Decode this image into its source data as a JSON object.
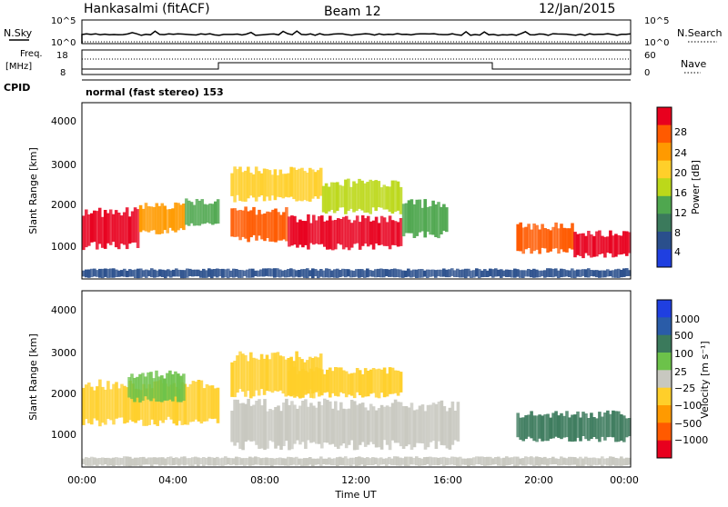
{
  "header": {
    "station": "Hankasalmi (fitACF)",
    "beam": "Beam 12",
    "date": "12/Jan/2015"
  },
  "noise_panel": {
    "left_label": "N.Sky",
    "left_ticks": [
      "10^5",
      "10^0"
    ],
    "right_ticks": [
      "10^5",
      "10^0"
    ],
    "right_label": "N.Search"
  },
  "freq_panel": {
    "label_line1": "Freq.",
    "label_line2": "[MHz]",
    "left_ticks": [
      "18",
      "8"
    ],
    "right_ticks": [
      "60",
      "0"
    ],
    "right_label": "Nave"
  },
  "cpid": {
    "label": "CPID",
    "value": "normal (fast stereo) 153"
  },
  "power_panel": {
    "ylabel": "Slant Range [km]",
    "yticks": [
      "4000",
      "3000",
      "2000",
      "1000"
    ],
    "colorbar_label": "Power [dB]",
    "colorbar_ticks": [
      "28",
      "24",
      "20",
      "16",
      "12",
      "8",
      "4"
    ],
    "colors": [
      "#e8001e",
      "#ff5a00",
      "#ff9a00",
      "#ffcf2a",
      "#bcd81a",
      "#4fa74f",
      "#3b7a5c",
      "#2a4f8c",
      "#1f3fe0"
    ]
  },
  "velocity_panel": {
    "ylabel": "Slant Range [km]",
    "yticks": [
      "4000",
      "3000",
      "2000",
      "1000"
    ],
    "colorbar_label": "Velocity [m s⁻¹]",
    "colorbar_ticks": [
      "1000",
      "500",
      "100",
      "25",
      "−25",
      "−100",
      "−500",
      "−1000"
    ],
    "colors": [
      "#1f3fe0",
      "#2a5ca8",
      "#3b7a5c",
      "#6cc24a",
      "#c8c8c0",
      "#ffcf2a",
      "#ff9a00",
      "#ff5a00",
      "#e8001e"
    ]
  },
  "x_axis": {
    "label": "Time UT",
    "ticks": [
      "00:00",
      "04:00",
      "08:00",
      "12:00",
      "16:00",
      "20:00",
      "00:00"
    ]
  },
  "chart_data": [
    {
      "type": "heatmap",
      "title": "Power [dB]",
      "xlabel": "Time UT",
      "ylabel": "Slant Range [km]",
      "xlim": [
        "00:00",
        "24:00"
      ],
      "ylim": [
        180,
        4600
      ],
      "colorbar_range": [
        3,
        30
      ],
      "regions": [
        {
          "t_start": 0.0,
          "t_end": 2.5,
          "range_min": 900,
          "range_max": 2000,
          "level": 27
        },
        {
          "t_start": 2.5,
          "t_end": 4.5,
          "range_min": 1300,
          "range_max": 2100,
          "level": 22
        },
        {
          "t_start": 4.5,
          "t_end": 6.0,
          "range_min": 1500,
          "range_max": 2200,
          "level": 12
        },
        {
          "t_start": 6.5,
          "t_end": 9.0,
          "range_min": 1100,
          "range_max": 2000,
          "level": 26
        },
        {
          "t_start": 6.5,
          "t_end": 10.5,
          "range_min": 2100,
          "range_max": 3000,
          "level": 18
        },
        {
          "t_start": 9.0,
          "t_end": 14.0,
          "range_min": 900,
          "range_max": 1800,
          "level": 27
        },
        {
          "t_start": 10.5,
          "t_end": 14.0,
          "range_min": 1800,
          "range_max": 2700,
          "level": 17
        },
        {
          "t_start": 14.0,
          "t_end": 16.0,
          "range_min": 1200,
          "range_max": 2200,
          "level": 12
        },
        {
          "t_start": 19.0,
          "t_end": 21.5,
          "range_min": 800,
          "range_max": 1600,
          "level": 24
        },
        {
          "t_start": 21.5,
          "t_end": 24.0,
          "range_min": 700,
          "range_max": 1400,
          "level": 29
        },
        {
          "t_start": 0.0,
          "t_end": 24.0,
          "range_min": 200,
          "range_max": 450,
          "level": 8
        }
      ]
    },
    {
      "type": "heatmap",
      "title": "Velocity [m s⁻¹]",
      "xlabel": "Time UT",
      "ylabel": "Slant Range [km]",
      "xlim": [
        "00:00",
        "24:00"
      ],
      "ylim": [
        180,
        4600
      ],
      "colorbar_range": [
        -1000,
        1000
      ],
      "regions": [
        {
          "t_start": 0.0,
          "t_end": 6.0,
          "range_min": 1200,
          "range_max": 2400,
          "level": -300
        },
        {
          "t_start": 2.0,
          "t_end": 4.5,
          "range_min": 1800,
          "range_max": 2600,
          "level": 200
        },
        {
          "t_start": 6.5,
          "t_end": 10.5,
          "range_min": 1900,
          "range_max": 3100,
          "level": -300
        },
        {
          "t_start": 6.5,
          "t_end": 16.5,
          "range_min": 600,
          "range_max": 1900,
          "level": 0
        },
        {
          "t_start": 9.0,
          "t_end": 14.0,
          "range_min": 1900,
          "range_max": 2700,
          "level": -200
        },
        {
          "t_start": 19.0,
          "t_end": 24.0,
          "range_min": 800,
          "range_max": 1600,
          "level": 400
        },
        {
          "t_start": 0.0,
          "t_end": 24.0,
          "range_min": 200,
          "range_max": 450,
          "level": -60
        }
      ]
    }
  ]
}
